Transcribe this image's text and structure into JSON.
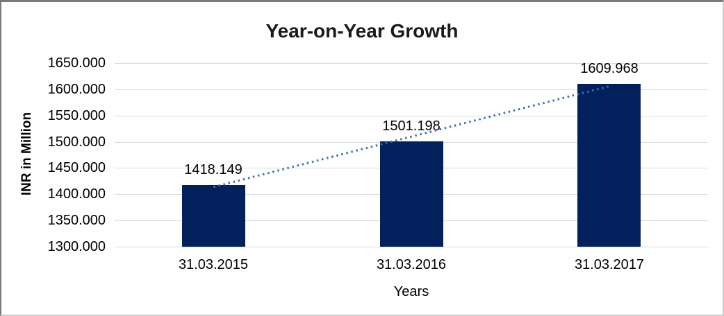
{
  "chart_data": {
    "type": "bar",
    "title": "Year-on-Year Growth",
    "categories": [
      "31.03.2015",
      "31.03.2016",
      "31.03.2017"
    ],
    "values": [
      1418.149,
      1501.198,
      1609.968
    ],
    "value_labels": [
      "1418.149",
      "1501.198",
      "1609.968"
    ],
    "xlabel": "Years",
    "ylabel": "INR in Million",
    "ylim": [
      1300,
      1650
    ],
    "ytick_step": 50,
    "ytick_labels": [
      "1650.000",
      "1600.000",
      "1550.000",
      "1500.000",
      "1450.000",
      "1400.000",
      "1350.000",
      "1300.000"
    ],
    "grid": true,
    "legend": "none",
    "trendline": {
      "type": "linear",
      "style": "dotted"
    },
    "colors": {
      "bar": "#02215C",
      "gridline": "#D9D9D9",
      "trendline": "#3E6DB5",
      "text": "#000000",
      "title": "#1A1A1A"
    }
  }
}
